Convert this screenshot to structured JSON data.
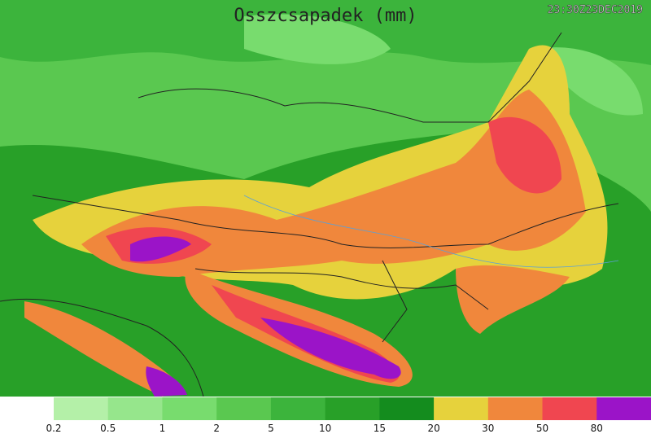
{
  "header": {
    "title": "Osszcsapadek (mm)",
    "timestamp": "23:30Z23DEC2019"
  },
  "legend": {
    "thresholds": [
      "0.2",
      "0.5",
      "1",
      "2",
      "5",
      "10",
      "15",
      "20",
      "30",
      "50",
      "80"
    ],
    "colors": [
      "#b4f0a8",
      "#96e68c",
      "#78dc6e",
      "#5ac850",
      "#3cb43c",
      "#28a028",
      "#148c1e",
      "#e6d23c",
      "#f0873c",
      "#f04650",
      "#9b14c8"
    ]
  }
}
